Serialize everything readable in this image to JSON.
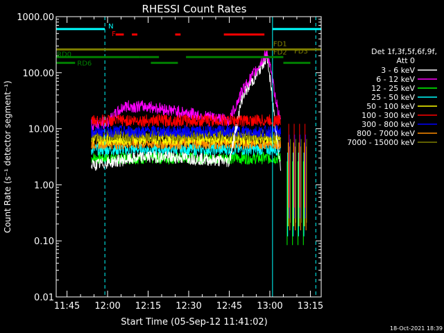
{
  "chart_data": {
    "type": "line",
    "title": "RHESSI Count Rates",
    "xlabel": "Start Time (05-Sep-12 11:41:02)",
    "ylabel": "Count Rate (s⁻¹ detector segment⁻¹)",
    "yscale": "log",
    "ylim": [
      0.01,
      1000
    ],
    "xlim": [
      "11:41",
      "13:19"
    ],
    "xticks": [
      "11:45",
      "12:00",
      "12:15",
      "12:30",
      "12:45",
      "13:00",
      "13:15"
    ],
    "yticks": [
      "0.01",
      "0.10",
      "1.00",
      "10.00",
      "100.00",
      "1000.00"
    ],
    "grid": false,
    "legend_position": "right",
    "legend_header": [
      "Det 1f,3f,5f,6f,9f,",
      "Att 0"
    ],
    "series": [
      {
        "name": "3 - 6 keV",
        "color": "#ffffff",
        "level": 2.2,
        "x": [
          "11:54",
          "12:00",
          "12:15",
          "12:30",
          "12:45",
          "12:50",
          "12:55",
          "12:59",
          "13:04"
        ],
        "y": [
          2.2,
          2.5,
          3.2,
          3.0,
          2.6,
          40,
          90,
          200,
          2.0
        ]
      },
      {
        "name": "6 - 12 keV",
        "color": "#ff00ff",
        "level": 13,
        "x": [
          "11:54",
          "12:00",
          "12:06",
          "12:15",
          "12:27",
          "12:45",
          "12:50",
          "12:55",
          "12:59",
          "13:04"
        ],
        "y": [
          12,
          13,
          25,
          25,
          20,
          14,
          50,
          110,
          230,
          12
        ]
      },
      {
        "name": "12 - 25 keV",
        "color": "#00ff00",
        "level": 3,
        "x": [
          "11:54",
          "13:04"
        ],
        "y": [
          3,
          3
        ]
      },
      {
        "name": "25 - 50 keV",
        "color": "#00ffff",
        "level": 4.3,
        "x": [
          "11:54",
          "13:04"
        ],
        "y": [
          4.3,
          4.3
        ]
      },
      {
        "name": "50 - 100 keV",
        "color": "#ffff00",
        "level": 6.5,
        "x": [
          "11:54",
          "13:04"
        ],
        "y": [
          6.5,
          6.5
        ]
      },
      {
        "name": "100 - 300 keV",
        "color": "#ff0000",
        "level": 14,
        "x": [
          "11:54",
          "13:04"
        ],
        "y": [
          14,
          14
        ]
      },
      {
        "name": "300 - 800 keV",
        "color": "#0000ff",
        "level": 9,
        "x": [
          "11:54",
          "13:04"
        ],
        "y": [
          9,
          9
        ]
      },
      {
        "name": "800 - 7000 keV",
        "color": "#ff8c00",
        "level": 5.5,
        "x": [
          "11:54",
          "13:04"
        ],
        "y": [
          5.5,
          5.5
        ]
      },
      {
        "name": "7000 - 15000 keV",
        "color": "#808000",
        "level": 7.5,
        "x": [
          "11:54",
          "13:04"
        ],
        "y": [
          7.5,
          7.5
        ]
      }
    ],
    "vertical_lines": [
      {
        "x": "11:41",
        "style": "solid",
        "color": "#00ffff"
      },
      {
        "x": "11:59",
        "style": "dashed",
        "color": "#00ffff"
      },
      {
        "x": "13:01",
        "style": "solid",
        "color": "#00ffff"
      },
      {
        "x": "13:17",
        "style": "dashed",
        "color": "#00ffff"
      }
    ],
    "flag_bars": [
      {
        "label": "N",
        "color": "#00ffff",
        "y": 600,
        "segments": [
          [
            "11:41",
            "11:59"
          ],
          [
            "13:01",
            "13:19"
          ]
        ]
      },
      {
        "label": "F",
        "color": "#ff0000",
        "y": 480,
        "segments": [
          [
            "12:03",
            "12:06"
          ],
          [
            "12:09",
            "12:11"
          ],
          [
            "12:25",
            "12:27"
          ],
          [
            "12:43",
            "12:58"
          ]
        ]
      },
      {
        "label": "FD1",
        "color": "#808000",
        "y": 260,
        "segments": [
          [
            "11:41",
            "13:19"
          ]
        ]
      },
      {
        "label": "FD2",
        "color": "#808000",
        "y": 200
      },
      {
        "label": "FD3",
        "color": "#808000",
        "y": 240
      },
      {
        "label": "RD0",
        "color": "#008000",
        "y": 190,
        "segments": [
          [
            "11:41",
            "12:12"
          ],
          [
            "12:12",
            "12:19"
          ],
          [
            "12:29",
            "13:05"
          ]
        ]
      },
      {
        "label": "RD6",
        "color": "#008000",
        "y": 150,
        "segments": [
          [
            "11:41",
            "11:48"
          ],
          [
            "12:16",
            "12:26"
          ],
          [
            "13:05",
            "13:15"
          ]
        ]
      }
    ],
    "timestamp": "18-Oct-2021 18:39"
  }
}
